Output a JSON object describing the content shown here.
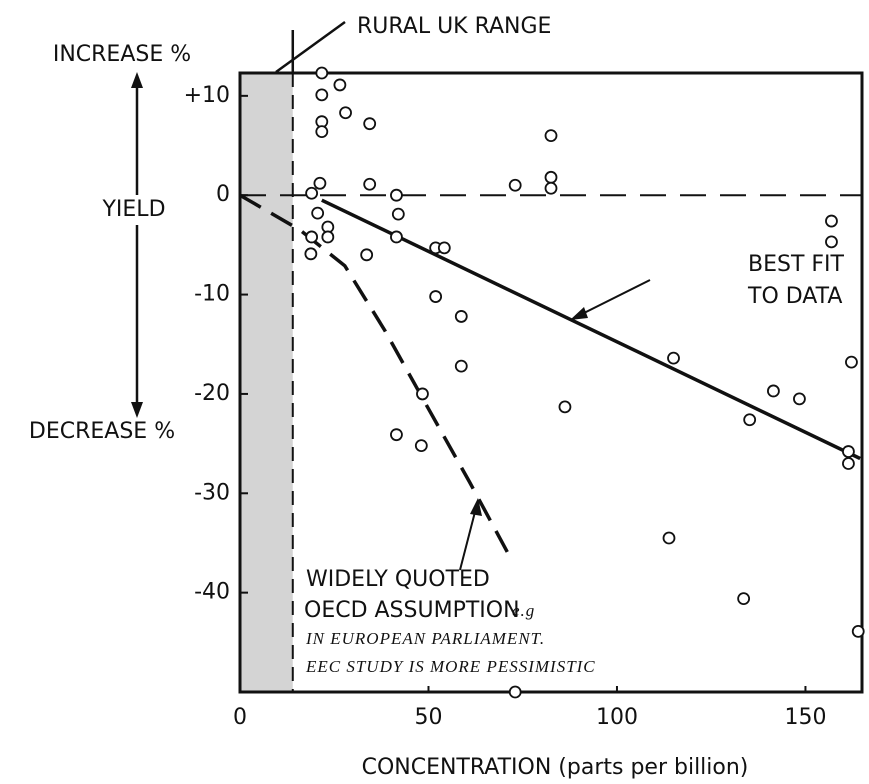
{
  "chart_data": {
    "type": "scatter",
    "title": "RURAL UK RANGE",
    "y_label_top": "INCREASE %",
    "y_label": "YIELD",
    "y_label_bottom": "DECREASE %",
    "x_label": "CONCENTRATION (parts per billion)",
    "xlim": [
      0,
      165
    ],
    "ylim": [
      -50,
      12.3
    ],
    "xticks": [
      0,
      50,
      100,
      150
    ],
    "yticks": [
      {
        "value": 10,
        "label": "+10"
      },
      0,
      -10,
      -20,
      -30,
      -40
    ],
    "shaded_range": [
      0,
      14
    ],
    "color": "#111111",
    "points": {
      "x": [
        21.7,
        21.7,
        26.5,
        21.7,
        21.7,
        28,
        34.4,
        19,
        21.2,
        34.4,
        41.5,
        42,
        41.5,
        20.6,
        19,
        18.8,
        23.3,
        23.3,
        33.6,
        51.9,
        54.2,
        51.9,
        58.7,
        58.7,
        48.4,
        41.5,
        48.1,
        73,
        82.5,
        82.5,
        82.5,
        86.2,
        73,
        115,
        113.8,
        135.2,
        133.6,
        141.5,
        148.4,
        156.9,
        156.9,
        162.2,
        161.4,
        161.4,
        164
      ],
      "y": [
        12.3,
        10.1,
        11.1,
        7.4,
        6.4,
        8.3,
        7.2,
        0.2,
        1.2,
        1.1,
        0,
        -1.9,
        -4.2,
        -1.8,
        -4.2,
        -5.9,
        -3.2,
        -4.2,
        -6,
        -5.3,
        -5.3,
        -10.2,
        -12.2,
        -17.2,
        -20,
        -24.1,
        -25.2,
        1,
        1.8,
        0.7,
        6,
        -21.3,
        -50,
        -16.4,
        -34.5,
        -22.6,
        -40.6,
        -19.7,
        -20.5,
        -2.6,
        -4.7,
        -16.8,
        -25.8,
        -27,
        -43.9
      ]
    },
    "lines": [
      {
        "label": [
          "BEST FIT",
          "TO DATA"
        ],
        "style": "solid",
        "x": [
          21.7,
          164.5
        ],
        "y": [
          -0.5,
          -26.5
        ]
      },
      {
        "label": [
          "WIDELY QUOTED",
          "OECD ASSUMPTION"
        ],
        "note": [
          "e.g",
          "IN EUROPEAN PARLIAMENT.",
          "EEC STUDY IS MORE PESSIMISTIC"
        ],
        "style": "dashed",
        "x": [
          0,
          15.9,
          27.8,
          38.4,
          50.3,
          60.8,
          70.9
        ],
        "y": [
          0,
          -3.5,
          -7.1,
          -13.6,
          -21.7,
          -28.8,
          -35.9
        ]
      },
      {
        "style": "dashed",
        "x": [
          0,
          165
        ],
        "y": [
          0,
          0
        ]
      }
    ]
  }
}
